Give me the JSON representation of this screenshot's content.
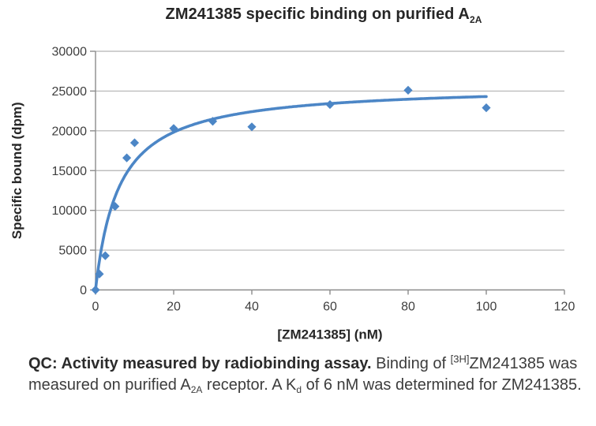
{
  "title": {
    "main": "ZM241385 specific binding on purified A",
    "subscript": "2A"
  },
  "caption": {
    "bold": "QC: Activity measured by radiobinding assay.",
    "seg1": " Binding of ",
    "sup_3h": "[3H]",
    "seg2": "ZM241385 was measured on purified A",
    "sub_2a": "2A",
    "seg3": " receptor. A K",
    "sub_d": "d",
    "seg4": " of 6 nM was determined for ZM241385."
  },
  "chart_data": {
    "type": "scatter",
    "title": "ZM241385 specific binding on purified A2A",
    "xlabel": "[ZM241385] (nM)",
    "ylabel": "Specific bound (dpm)",
    "xlim": [
      0,
      120
    ],
    "ylim": [
      0,
      30000
    ],
    "x_ticks": [
      0,
      20,
      40,
      60,
      80,
      100,
      120
    ],
    "y_ticks": [
      0,
      5000,
      10000,
      15000,
      20000,
      25000,
      30000
    ],
    "grid": "horizontal-only",
    "legend": "none",
    "marker": "diamond",
    "x": [
      0,
      1,
      2.5,
      5,
      8,
      10,
      20,
      30,
      40,
      60,
      80,
      100
    ],
    "y": [
      0,
      2000,
      4300,
      10500,
      16600,
      18500,
      20300,
      21200,
      20500,
      23300,
      25100,
      22900
    ],
    "fit_curve": {
      "model": "one_site_binding B = Bmax*x/(Kd+x)",
      "bmax": 25770,
      "kd_nM": 6,
      "x_range": [
        0,
        100
      ]
    },
    "colors": {
      "series": "#4C86C6",
      "gridline": "#B3B3B3",
      "axis": "#8C8C8C",
      "tick_label": "#3F3F3F",
      "text": "#262626"
    }
  }
}
